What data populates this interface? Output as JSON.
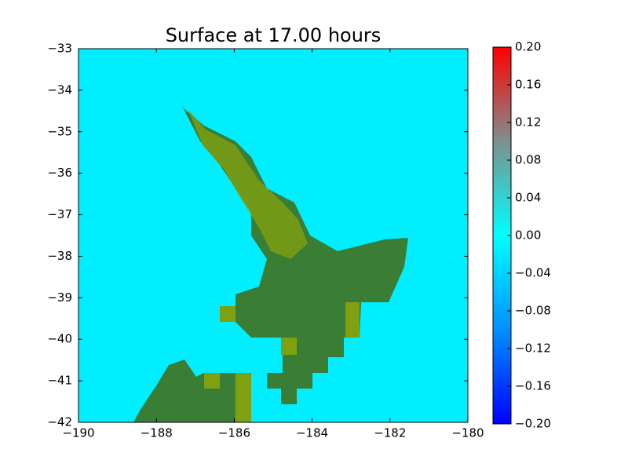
{
  "chart_data": {
    "type": "heatmap",
    "title": "Surface at 17.00 hours",
    "xlim": [
      -190,
      -180
    ],
    "xticks": [
      {
        "value": -190,
        "label": "−190"
      },
      {
        "value": -188,
        "label": "−188"
      },
      {
        "value": -186,
        "label": "−186"
      },
      {
        "value": -184,
        "label": "−184"
      },
      {
        "value": -182,
        "label": "−182"
      },
      {
        "value": -180,
        "label": "−180"
      }
    ],
    "ylim": [
      -42,
      -33
    ],
    "yticks": [
      {
        "value": -42,
        "label": "−42"
      },
      {
        "value": -41,
        "label": "−41"
      },
      {
        "value": -40,
        "label": "−40"
      },
      {
        "value": -39,
        "label": "−39"
      },
      {
        "value": -38,
        "label": "−38"
      },
      {
        "value": -37,
        "label": "−37"
      },
      {
        "value": -36,
        "label": "−36"
      },
      {
        "value": -35,
        "label": "−35"
      },
      {
        "value": -34,
        "label": "−34"
      },
      {
        "value": -33,
        "label": "−33"
      }
    ],
    "colorbar": {
      "lim": [
        -0.2,
        0.2
      ],
      "ticks": [
        {
          "value": -0.2,
          "label": "−0.20"
        },
        {
          "value": -0.16,
          "label": "−0.16"
        },
        {
          "value": -0.12,
          "label": "−0.12"
        },
        {
          "value": -0.08,
          "label": "−0.08"
        },
        {
          "value": -0.04,
          "label": "−0.04"
        },
        {
          "value": 0,
          "label": "0.00"
        },
        {
          "value": 0.04,
          "label": "0.04"
        },
        {
          "value": 0.08,
          "label": "0.08"
        },
        {
          "value": 0.12,
          "label": "0.12"
        },
        {
          "value": 0.16,
          "label": "0.16"
        },
        {
          "value": 0.2,
          "label": "0.20"
        }
      ],
      "colormap": [
        "#0000ff",
        "#0090ff",
        "#00ffff",
        "#7f8f8f",
        "#ff0000"
      ]
    },
    "background_color": "#00eeff"
  }
}
